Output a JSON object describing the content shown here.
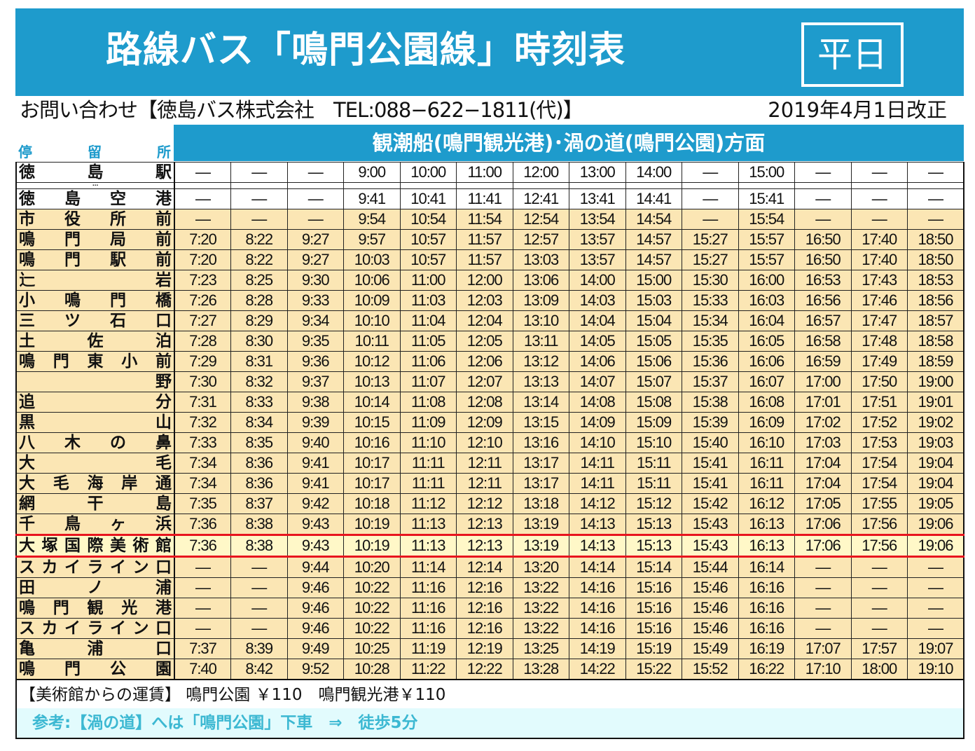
{
  "header": {
    "title": "路線バス「鳴門公園線」時刻表",
    "day_badge": "平日"
  },
  "info": {
    "contact": "お問い合わせ【徳島バス株式会社　TEL:088−622−1811(代)】",
    "revision": "2019年4月1日改正"
  },
  "direction": "観潮船(鳴門観光港)･渦の道(鳴門公園)方面",
  "stop_label": [
    "停",
    "留",
    "所"
  ],
  "colors": {
    "header_blue": "#1e9bcc",
    "row_beige": "#fbe6b4",
    "highlight_red": "#e8141e",
    "note_cyan": "#3cb8d2"
  },
  "rows": [
    {
      "stop": "徳　島　駅",
      "times": [
        "—",
        "—",
        "—",
        "9:00",
        "10:00",
        "11:00",
        "12:00",
        "13:00",
        "14:00",
        "—",
        "15:00",
        "—",
        "—",
        "—"
      ],
      "style": "white"
    },
    {
      "stop": "⋯",
      "times": [
        "",
        "",
        "",
        "",
        "",
        "",
        "",
        "",
        "",
        "",
        "",
        "",
        "",
        ""
      ],
      "style": "dots"
    },
    {
      "stop": "徳島空港",
      "times": [
        "—",
        "—",
        "—",
        "9:41",
        "10:41",
        "11:41",
        "12:41",
        "13:41",
        "14:41",
        "—",
        "15:41",
        "—",
        "—",
        "—"
      ],
      "style": "white"
    },
    {
      "stop": "市役所前",
      "times": [
        "—",
        "—",
        "—",
        "9:54",
        "10:54",
        "11:54",
        "12:54",
        "13:54",
        "14:54",
        "—",
        "15:54",
        "—",
        "—",
        "—"
      ],
      "style": "y"
    },
    {
      "stop": "鳴門局前",
      "times": [
        "7:20",
        "8:22",
        "9:27",
        "9:57",
        "10:57",
        "11:57",
        "12:57",
        "13:57",
        "14:57",
        "15:27",
        "15:57",
        "16:50",
        "17:40",
        "18:50"
      ],
      "style": "y"
    },
    {
      "stop": "鳴門駅前",
      "times": [
        "7:20",
        "8:22",
        "9:27",
        "10:03",
        "10:57",
        "11:57",
        "13:03",
        "13:57",
        "14:57",
        "15:27",
        "15:57",
        "16:50",
        "17:40",
        "18:50"
      ],
      "style": "y"
    },
    {
      "stop": "辷　岩",
      "times": [
        "7:23",
        "8:25",
        "9:30",
        "10:06",
        "11:00",
        "12:00",
        "13:06",
        "14:00",
        "15:00",
        "15:30",
        "16:00",
        "16:53",
        "17:43",
        "18:53"
      ],
      "style": "y"
    },
    {
      "stop": "小鳴門橋",
      "times": [
        "7:26",
        "8:28",
        "9:33",
        "10:09",
        "11:03",
        "12:03",
        "13:09",
        "14:03",
        "15:03",
        "15:33",
        "16:03",
        "16:56",
        "17:46",
        "18:56"
      ],
      "style": "y"
    },
    {
      "stop": "三ツ石口",
      "times": [
        "7:27",
        "8:29",
        "9:34",
        "10:10",
        "11:04",
        "12:04",
        "13:10",
        "14:04",
        "15:04",
        "15:34",
        "16:04",
        "16:57",
        "17:47",
        "18:57"
      ],
      "style": "y"
    },
    {
      "stop": "土佐泊",
      "times": [
        "7:28",
        "8:30",
        "9:35",
        "10:11",
        "11:05",
        "12:05",
        "13:11",
        "14:05",
        "15:05",
        "15:35",
        "16:05",
        "16:58",
        "17:48",
        "18:58"
      ],
      "style": "y"
    },
    {
      "stop": "鳴門東小前",
      "times": [
        "7:29",
        "8:31",
        "9:36",
        "10:12",
        "11:06",
        "12:06",
        "13:12",
        "14:06",
        "15:06",
        "15:36",
        "16:06",
        "16:59",
        "17:49",
        "18:59"
      ],
      "style": "y"
    },
    {
      "stop": "　野　",
      "times": [
        "7:30",
        "8:32",
        "9:37",
        "10:13",
        "11:07",
        "12:07",
        "13:13",
        "14:07",
        "15:07",
        "15:37",
        "16:07",
        "17:00",
        "17:50",
        "19:00"
      ],
      "style": "y"
    },
    {
      "stop": "追　分",
      "times": [
        "7:31",
        "8:33",
        "9:38",
        "10:14",
        "11:08",
        "12:08",
        "13:14",
        "14:08",
        "15:08",
        "15:38",
        "16:08",
        "17:01",
        "17:51",
        "19:01"
      ],
      "style": "y"
    },
    {
      "stop": "黒　山",
      "times": [
        "7:32",
        "8:34",
        "9:39",
        "10:15",
        "11:09",
        "12:09",
        "13:15",
        "14:09",
        "15:09",
        "15:39",
        "16:09",
        "17:02",
        "17:52",
        "19:02"
      ],
      "style": "y"
    },
    {
      "stop": "八木の鼻",
      "times": [
        "7:33",
        "8:35",
        "9:40",
        "10:16",
        "11:10",
        "12:10",
        "13:16",
        "14:10",
        "15:10",
        "15:40",
        "16:10",
        "17:03",
        "17:53",
        "19:03"
      ],
      "style": "y"
    },
    {
      "stop": "大　毛",
      "times": [
        "7:34",
        "8:36",
        "9:41",
        "10:17",
        "11:11",
        "12:11",
        "13:17",
        "14:11",
        "15:11",
        "15:41",
        "16:11",
        "17:04",
        "17:54",
        "19:04"
      ],
      "style": "y"
    },
    {
      "stop": "大毛海岸通",
      "times": [
        "7:34",
        "8:36",
        "9:41",
        "10:17",
        "11:11",
        "12:11",
        "13:17",
        "14:11",
        "15:11",
        "15:41",
        "16:11",
        "17:04",
        "17:54",
        "19:04"
      ],
      "style": "y"
    },
    {
      "stop": "網干島",
      "times": [
        "7:35",
        "8:37",
        "9:42",
        "10:18",
        "11:12",
        "12:12",
        "13:18",
        "14:12",
        "15:12",
        "15:42",
        "16:12",
        "17:05",
        "17:55",
        "19:05"
      ],
      "style": "y"
    },
    {
      "stop": "千鳥ヶ浜",
      "times": [
        "7:36",
        "8:38",
        "9:43",
        "10:19",
        "11:13",
        "12:13",
        "13:19",
        "14:13",
        "15:13",
        "15:43",
        "16:13",
        "17:06",
        "17:56",
        "19:06"
      ],
      "style": "y"
    },
    {
      "stop": "大塚国際美術館",
      "times": [
        "7:36",
        "8:38",
        "9:43",
        "10:19",
        "11:13",
        "12:13",
        "13:19",
        "14:13",
        "15:13",
        "15:43",
        "16:13",
        "17:06",
        "17:56",
        "19:06"
      ],
      "style": "hl"
    },
    {
      "stop": "スカイライン口",
      "times": [
        "—",
        "—",
        "9:44",
        "10:20",
        "11:14",
        "12:14",
        "13:20",
        "14:14",
        "15:14",
        "15:44",
        "16:14",
        "—",
        "—",
        "—"
      ],
      "style": "y"
    },
    {
      "stop": "田ノ浦",
      "times": [
        "—",
        "—",
        "9:46",
        "10:22",
        "11:16",
        "12:16",
        "13:22",
        "14:16",
        "15:16",
        "15:46",
        "16:16",
        "—",
        "—",
        "—"
      ],
      "style": "y"
    },
    {
      "stop": "鳴門観光港",
      "times": [
        "—",
        "—",
        "9:46",
        "10:22",
        "11:16",
        "12:16",
        "13:22",
        "14:16",
        "15:16",
        "15:46",
        "16:16",
        "—",
        "—",
        "—"
      ],
      "style": "y"
    },
    {
      "stop": "スカイライン口",
      "times": [
        "—",
        "—",
        "9:46",
        "10:22",
        "11:16",
        "12:16",
        "13:22",
        "14:16",
        "15:16",
        "15:46",
        "16:16",
        "—",
        "—",
        "—"
      ],
      "style": "y"
    },
    {
      "stop": "亀浦口",
      "times": [
        "7:37",
        "8:39",
        "9:49",
        "10:25",
        "11:19",
        "12:19",
        "13:25",
        "14:19",
        "15:19",
        "15:49",
        "16:19",
        "17:07",
        "17:57",
        "19:07"
      ],
      "style": "y"
    },
    {
      "stop": "鳴門公園",
      "times": [
        "7:40",
        "8:42",
        "9:52",
        "10:28",
        "11:22",
        "12:22",
        "13:28",
        "14:22",
        "15:22",
        "15:52",
        "16:22",
        "17:10",
        "18:00",
        "19:10"
      ],
      "style": "y"
    }
  ],
  "footer": {
    "fare": "【美術館からの運賃】 鳴門公園 ￥110　鳴門観光港￥110",
    "note": "参考:【渦の道】へは「鳴門公園」下車　⇒　徒歩5分"
  }
}
